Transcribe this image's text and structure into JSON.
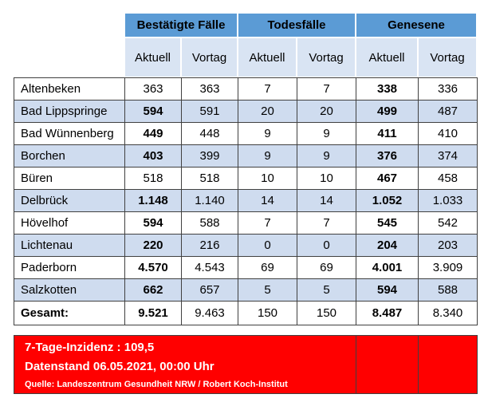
{
  "headers": {
    "group1": "Bestätigte Fälle",
    "group2": "Todesfälle",
    "group3": "Genesene",
    "sub_labels": [
      "Aktuell",
      "Vortag",
      "Aktuell",
      "Vortag",
      "Aktuell",
      "Vortag"
    ]
  },
  "rows": [
    {
      "name": "Altenbeken",
      "values": [
        "363",
        "363",
        "7",
        "7",
        "338",
        "336"
      ]
    },
    {
      "name": "Bad Lippspringe",
      "values": [
        "594",
        "591",
        "20",
        "20",
        "499",
        "487"
      ]
    },
    {
      "name": "Bad Wünnenberg",
      "values": [
        "449",
        "448",
        "9",
        "9",
        "411",
        "410"
      ]
    },
    {
      "name": "Borchen",
      "values": [
        "403",
        "399",
        "9",
        "9",
        "376",
        "374"
      ]
    },
    {
      "name": "Büren",
      "values": [
        "518",
        "518",
        "10",
        "10",
        "467",
        "458"
      ]
    },
    {
      "name": "Delbrück",
      "values": [
        "1.148",
        "1.140",
        "14",
        "14",
        "1.052",
        "1.033"
      ]
    },
    {
      "name": "Hövelhof",
      "values": [
        "594",
        "588",
        "7",
        "7",
        "545",
        "542"
      ]
    },
    {
      "name": "Lichtenau",
      "values": [
        "220",
        "216",
        "0",
        "0",
        "204",
        "203"
      ]
    },
    {
      "name": "Paderborn",
      "values": [
        "4.570",
        "4.543",
        "69",
        "69",
        "4.001",
        "3.909"
      ]
    },
    {
      "name": "Salzkotten",
      "values": [
        "662",
        "657",
        "5",
        "5",
        "594",
        "588"
      ]
    }
  ],
  "total": {
    "name": "Gesamt:",
    "values": [
      "9.521",
      "9.463",
      "150",
      "150",
      "8.487",
      "8.340"
    ]
  },
  "footer": {
    "incidence": "7-Tage-Inzidenz : 109,5",
    "date": "Datenstand 06.05.2021, 00:00 Uhr",
    "source": "Quelle: Landeszentrum Gesundheit NRW / Robert Koch-Institut"
  },
  "colors": {
    "header_blue": "#5b9bd5",
    "subheader_blue": "#d9e4f3",
    "row_alt_blue": "#cfdcef",
    "footer_red": "#ff0000"
  }
}
